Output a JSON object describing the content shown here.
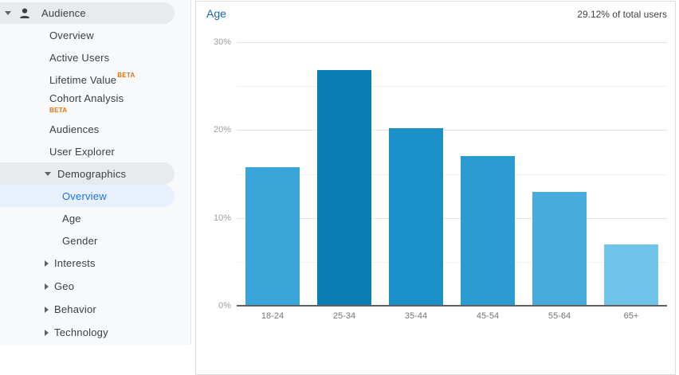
{
  "sidebar": {
    "beta_label": "BETA",
    "items": [
      {
        "slug": "audience",
        "label": "Audience",
        "level": 1,
        "arrow": "down",
        "icon": "person-icon",
        "pill": "gray"
      },
      {
        "slug": "overview",
        "label": "Overview",
        "level": 2
      },
      {
        "slug": "active-users",
        "label": "Active Users",
        "level": 2
      },
      {
        "slug": "lifetime-value",
        "label": "Lifetime Value",
        "level": 2,
        "beta": "sup"
      },
      {
        "slug": "cohort-analysis",
        "label": "Cohort Analysis",
        "level": 2,
        "beta": "below"
      },
      {
        "slug": "audiences",
        "label": "Audiences",
        "level": 2
      },
      {
        "slug": "user-explorer",
        "label": "User Explorer",
        "level": 2
      },
      {
        "slug": "demographics",
        "label": "Demographics",
        "level": 2,
        "arrow": "down",
        "pill": "gray"
      },
      {
        "slug": "demographics-overview",
        "label": "Overview",
        "level": 3,
        "pill": "blue",
        "selected": true
      },
      {
        "slug": "age",
        "label": "Age",
        "level": 3
      },
      {
        "slug": "gender",
        "label": "Gender",
        "level": 3
      },
      {
        "slug": "interests",
        "label": "Interests",
        "level": 2,
        "arrow": "right"
      },
      {
        "slug": "geo",
        "label": "Geo",
        "level": 2,
        "arrow": "right"
      },
      {
        "slug": "behavior",
        "label": "Behavior",
        "level": 2,
        "arrow": "right"
      },
      {
        "slug": "technology",
        "label": "Technology",
        "level": 2,
        "arrow": "right"
      }
    ]
  },
  "chart_data": {
    "type": "bar",
    "title": "Age",
    "annotation": "29.12% of total users",
    "categories": [
      "18-24",
      "25-34",
      "35-44",
      "45-54",
      "55-64",
      "65+"
    ],
    "values": [
      15.8,
      26.8,
      20.2,
      17.0,
      13.0,
      7.0
    ],
    "bar_colors": [
      "#3aa5d9",
      "#0c7cb5",
      "#1b90c8",
      "#2b9bd1",
      "#47abdc",
      "#70c4e9"
    ],
    "xlabel": "",
    "ylabel": "",
    "ylim": [
      0,
      30
    ],
    "yticks": [
      0,
      10,
      20,
      30
    ],
    "ytick_labels": [
      "0%",
      "10%",
      "20%",
      "30%"
    ],
    "grid_step": 5,
    "grid": "on",
    "legend_position": "none"
  },
  "colors": {
    "selected_blue": "#1a73e8",
    "pill_gray": "#e8eaed",
    "pill_blue": "#e8f0fe",
    "beta_orange": "#e8710a",
    "title_blue": "#1569af",
    "sidebar_text": "#3c4043",
    "axis_text": "#9e9e9e"
  }
}
